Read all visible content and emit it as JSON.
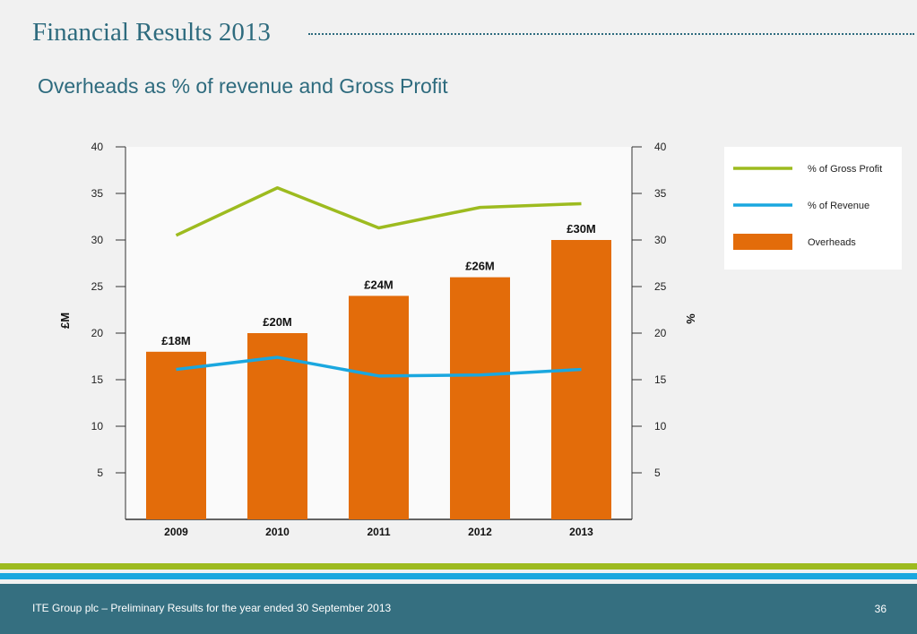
{
  "header": {
    "title": "Financial Results 2013",
    "subtitle": "Overheads as % of revenue and Gross Profit"
  },
  "footer": {
    "text": "ITE Group plc – Preliminary Results for the year ended 30 September 2013",
    "page_number": "36"
  },
  "colors": {
    "title": "#2e6b7e",
    "overheads": "#e36c0a",
    "gross_profit_line": "#9dbb1f",
    "revenue_line": "#1aa7df",
    "footer_bg": "#356f80"
  },
  "chart_data": {
    "type": "bar",
    "categories": [
      "2009",
      "2010",
      "2011",
      "2012",
      "2013"
    ],
    "left_axis": {
      "label": "£M",
      "ylim": [
        0,
        40
      ],
      "ticks": [
        5,
        10,
        15,
        20,
        25,
        30,
        35,
        40
      ]
    },
    "right_axis": {
      "label": "%",
      "ylim": [
        0,
        40
      ],
      "ticks": [
        5,
        10,
        15,
        20,
        25,
        30,
        35,
        40
      ]
    },
    "series": [
      {
        "name": "Overheads",
        "kind": "bar",
        "axis": "left",
        "color": "#e36c0a",
        "values": [
          18,
          20,
          24,
          26,
          30
        ],
        "data_labels": [
          "£18M",
          "£20M",
          "£24M",
          "£26M",
          "£30M"
        ]
      },
      {
        "name": "% of Gross Profit",
        "kind": "line",
        "axis": "right",
        "color": "#9dbb1f",
        "values": [
          30.5,
          35.6,
          31.3,
          33.5,
          33.9
        ]
      },
      {
        "name": "% of Revenue",
        "kind": "line",
        "axis": "right",
        "color": "#1aa7df",
        "values": [
          16.1,
          17.4,
          15.4,
          15.5,
          16.1
        ]
      }
    ],
    "legend": {
      "position": "right",
      "entries": [
        "% of Gross Profit",
        "% of Revenue",
        "Overheads"
      ]
    },
    "grid": false
  }
}
